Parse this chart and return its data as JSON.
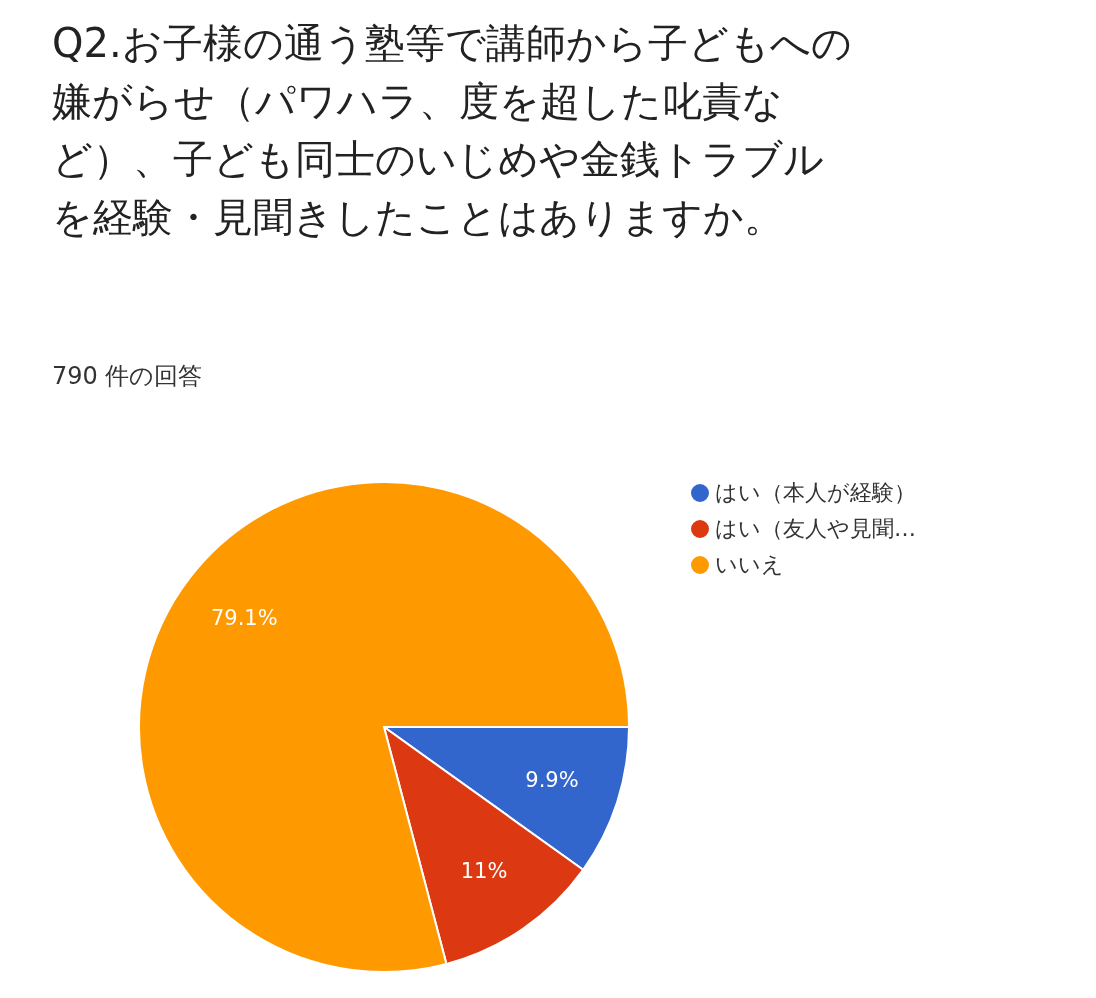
{
  "chart_data": {
    "type": "pie",
    "title": "Q2.お子様の通う塾等で講師から子どもへの嫌がらせ（パワハラ、度を超した叱責など）、子ども同士のいじめや金銭トラブルを経験・見聞きしたことはありますか。",
    "subtitle": "790 件の回答",
    "categories": [
      "はい（本人が経験）",
      "はい（友人や見聞…",
      "いいえ"
    ],
    "values": [
      9.9,
      11,
      79.1
    ],
    "colors": [
      "#3366cc",
      "#dc3912",
      "#ff9900"
    ],
    "value_labels": [
      "9.9%",
      "11%",
      "79.1%"
    ],
    "legend": "top right"
  }
}
